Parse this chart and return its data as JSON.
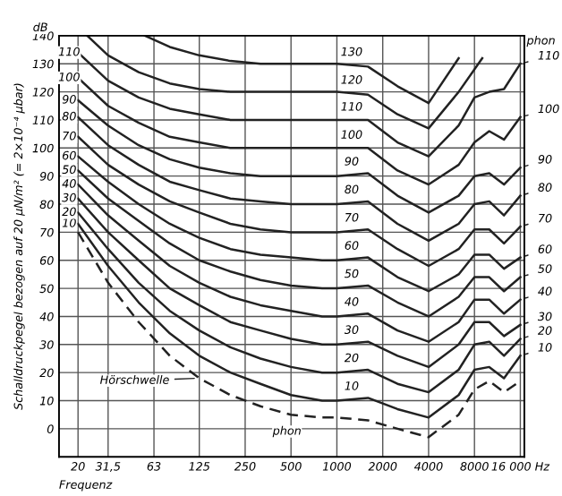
{
  "chart_data": {
    "type": "line",
    "ylabel": "Schalldruckpegel bezogen auf 20 µN/m² (= 2×10⁻⁴ µbar)",
    "xlabel": "Frequenz",
    "log": "x",
    "xlim": [
      15,
      17000
    ],
    "ylim": [
      -10,
      140
    ],
    "grid": true,
    "marker": "none",
    "legend": "right",
    "xticks": [
      20,
      {
        "value": 31.5,
        "label": "31,5"
      },
      63,
      125,
      250,
      500,
      1000,
      2000,
      4000,
      8000,
      {
        "value": 16000,
        "label": "16 000 Hz"
      }
    ],
    "yticks": [
      0,
      10,
      20,
      30,
      40,
      50,
      60,
      70,
      80,
      90,
      100,
      110,
      120,
      130,
      140
    ],
    "x": [
      20,
      31.5,
      50,
      80,
      125,
      200,
      315,
      500,
      800,
      1000,
      1600,
      2500,
      4000,
      6300,
      8000,
      10000,
      12500,
      16000
    ],
    "series": [
      {
        "color": "#222222",
        "line_style": "dashed",
        "values": [
          70,
          52,
          38,
          26,
          18,
          12,
          8,
          5,
          4,
          4,
          3,
          0,
          -3,
          5,
          14,
          17,
          13,
          17
        ]
      },
      {
        "name": "10",
        "color": "#222222",
        "values": [
          73,
          58,
          45,
          34,
          26,
          20,
          16,
          12,
          10,
          10,
          11,
          7,
          4,
          12,
          21,
          22,
          18,
          26
        ]
      },
      {
        "name": "20",
        "color": "#222222",
        "values": [
          77,
          64,
          52,
          42,
          35,
          29,
          25,
          22,
          20,
          20,
          21,
          16,
          13,
          21,
          30,
          31,
          26,
          32
        ]
      },
      {
        "name": "30",
        "color": "#222222",
        "values": [
          82,
          70,
          60,
          50,
          44,
          38,
          35,
          32,
          30,
          30,
          31,
          26,
          22,
          30,
          38,
          38,
          33,
          37
        ]
      },
      {
        "name": "40",
        "color": "#222222",
        "values": [
          87,
          76,
          67,
          58,
          52,
          47,
          44,
          42,
          40,
          40,
          41,
          35,
          31,
          38,
          46,
          46,
          41,
          46
        ]
      },
      {
        "name": "50",
        "color": "#222222",
        "values": [
          92,
          82,
          74,
          66,
          60,
          56,
          53,
          51,
          50,
          50,
          51,
          45,
          40,
          47,
          54,
          54,
          49,
          54
        ]
      },
      {
        "name": "60",
        "color": "#222222",
        "values": [
          97,
          88,
          80,
          73,
          68,
          64,
          62,
          61,
          60,
          60,
          61,
          54,
          49,
          55,
          62,
          62,
          57,
          61
        ]
      },
      {
        "name": "70",
        "color": "#222222",
        "values": [
          104,
          94,
          87,
          81,
          77,
          73,
          71,
          70,
          70,
          70,
          71,
          64,
          58,
          64,
          71,
          71,
          66,
          72
        ]
      },
      {
        "name": "80",
        "color": "#222222",
        "values": [
          111,
          101,
          94,
          88,
          85,
          82,
          81,
          80,
          80,
          80,
          81,
          73,
          67,
          73,
          80,
          81,
          76,
          83
        ]
      },
      {
        "name": "90",
        "color": "#222222",
        "values": [
          117,
          108,
          101,
          96,
          93,
          91,
          90,
          90,
          90,
          90,
          91,
          83,
          77,
          83,
          90,
          91,
          87,
          93
        ]
      },
      {
        "name": "100",
        "color": "#222222",
        "values": [
          125,
          115,
          109,
          104,
          102,
          100,
          100,
          100,
          100,
          100,
          100,
          92,
          87,
          94,
          102,
          106,
          103,
          111
        ]
      },
      {
        "name": "110",
        "color": "#222222",
        "values": [
          134,
          124,
          118,
          114,
          112,
          110,
          110,
          110,
          110,
          110,
          110,
          102,
          97,
          108,
          118,
          120,
          121,
          130
        ]
      },
      {
        "name": "120",
        "color": "#222222",
        "x": [
          23,
          31.5,
          50,
          80,
          125,
          200,
          315,
          500,
          800,
          1000,
          1600,
          2500,
          4000,
          6300,
          9000
        ],
        "values": [
          140,
          133,
          127,
          123,
          121,
          120,
          120,
          120,
          120,
          120,
          119,
          112,
          107,
          120,
          132
        ]
      },
      {
        "name": "130",
        "color": "#222222",
        "x": [
          55,
          80,
          125,
          200,
          315,
          500,
          800,
          1000,
          1600,
          2500,
          4000,
          6300
        ],
        "values": [
          140,
          136,
          133,
          131,
          130,
          130,
          130,
          130,
          129,
          122,
          116,
          132
        ]
      }
    ],
    "annotations": [
      "dB",
      "phon",
      "phon",
      {
        "text": "Hörschwelle",
        "x": 125,
        "y": 18
      }
    ]
  }
}
